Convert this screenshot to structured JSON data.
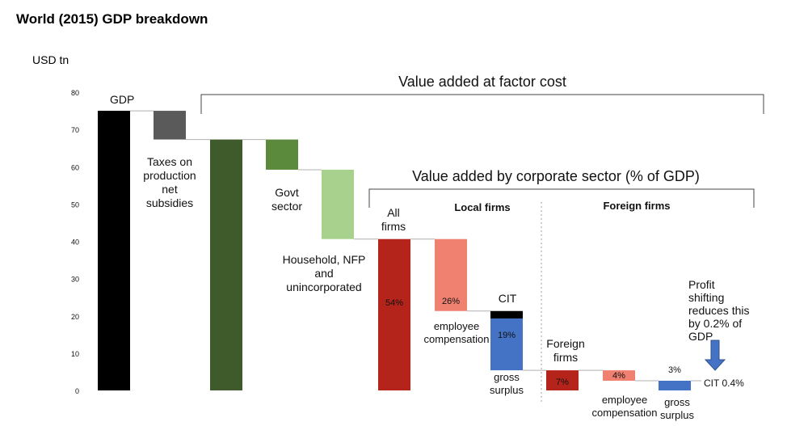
{
  "chart_data": {
    "type": "waterfall",
    "title": "World (2015) GDP breakdown",
    "ylabel": "USD tn",
    "ylim": [
      0,
      80
    ],
    "yticks": [
      0,
      10,
      20,
      30,
      40,
      50,
      60,
      70,
      80
    ],
    "bars": [
      {
        "id": "gdp",
        "label": [
          "GDP"
        ],
        "from": 0,
        "to": 75,
        "color": "#000000",
        "pct": ""
      },
      {
        "id": "taxes",
        "label": [
          "Taxes on",
          "production",
          "net",
          "subsidies"
        ],
        "from": 67.3,
        "to": 75,
        "color": "#5a5a5a",
        "pct": ""
      },
      {
        "id": "value-added",
        "label": [],
        "from": 0,
        "to": 67.3,
        "color": "#3f5b2b",
        "pct": ""
      },
      {
        "id": "govt",
        "label": [
          "Govt",
          "sector"
        ],
        "from": 59.2,
        "to": 67.3,
        "color": "#5b8a3c",
        "pct": ""
      },
      {
        "id": "household",
        "label": [
          "Household, NFP",
          "and",
          "unincorporated"
        ],
        "from": 40.6,
        "to": 59.2,
        "color": "#a9d18e",
        "pct": ""
      },
      {
        "id": "all-firms",
        "label": [
          "All",
          "firms"
        ],
        "from": 0,
        "to": 40.6,
        "color": "#b5241b",
        "pct": "54%"
      },
      {
        "id": "local-employee",
        "label": [
          "employee",
          "compensation"
        ],
        "from": 21.3,
        "to": 40.6,
        "color": "#f08070",
        "pct": "26%"
      },
      {
        "id": "local-cit",
        "label": [
          "CIT"
        ],
        "from": 19.3,
        "to": 21.3,
        "color": "#000000",
        "pct": ""
      },
      {
        "id": "local-surplus",
        "label": [
          "gross",
          "surplus"
        ],
        "from": 5.4,
        "to": 19.3,
        "color": "#4472c4",
        "pct": "19%"
      },
      {
        "id": "foreign-firms",
        "label": [
          "Foreign",
          "firms"
        ],
        "from": 0,
        "to": 5.4,
        "color": "#b5241b",
        "pct": "7%"
      },
      {
        "id": "foreign-employee",
        "label": [
          "employee",
          "compensation"
        ],
        "from": 2.6,
        "to": 5.4,
        "color": "#f08070",
        "pct": "4%"
      },
      {
        "id": "foreign-surplus",
        "label": [
          "gross",
          "surplus"
        ],
        "from": 0,
        "to": 2.6,
        "color": "#4472c4",
        "pct": "3%"
      }
    ],
    "annotations": {
      "value_added_factor": "Value added at factor cost",
      "value_added_corporate": "Value added by corporate sector (% of GDP)",
      "local_firms": "Local firms",
      "foreign_firms": "Foreign firms",
      "profit_shifting": [
        "Profit",
        "shifting",
        "reduces this",
        "by  0.2% of",
        "GDP"
      ],
      "cit_foreign": "CIT 0.4%"
    }
  }
}
